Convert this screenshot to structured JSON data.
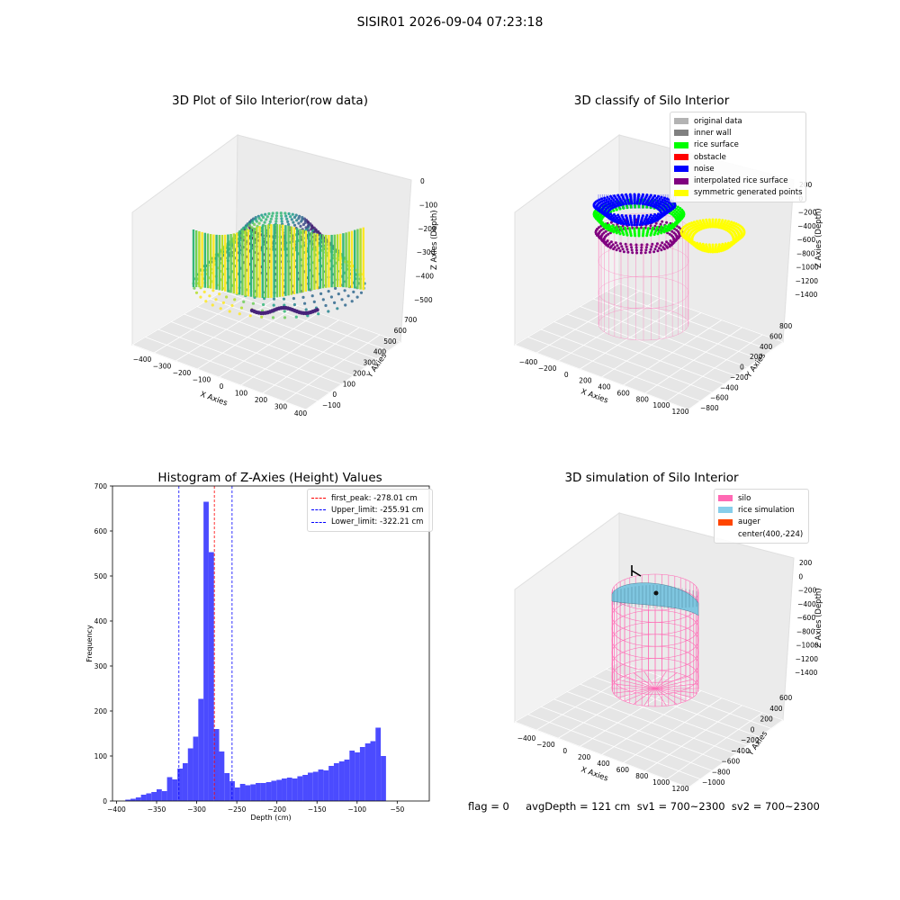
{
  "suptitle": "SISIR01 2026-09-04 07:23:18",
  "panels": {
    "raw": {
      "title": "3D Plot of Silo Interior(row data)",
      "xlabel": "X Axies",
      "ylabel": "Y Axies",
      "zlabel": "Z Axies (Depth)",
      "xticks": [
        "−400",
        "−300",
        "−200",
        "−100",
        "0",
        "100",
        "200",
        "300",
        "400"
      ],
      "yticks": [
        "−100",
        "0",
        "100",
        "200",
        "300",
        "400",
        "500",
        "600",
        "700"
      ],
      "zticks": [
        "0",
        "−100",
        "−200",
        "−300",
        "−400",
        "−500"
      ]
    },
    "classify": {
      "title": "3D classify of Silo Interior",
      "xlabel": "X Axies",
      "ylabel": "Y Axies",
      "zlabel": "Z Axies (Depth)",
      "xticks": [
        "−400",
        "−200",
        "0",
        "200",
        "400",
        "600",
        "800",
        "1000",
        "1200"
      ],
      "yticks": [
        "−800",
        "−600",
        "−400",
        "−200",
        "0",
        "200",
        "400",
        "600",
        "800"
      ],
      "zticks": [
        "200",
        "0",
        "−200",
        "−400",
        "−600",
        "−800",
        "−1000",
        "−1200",
        "−1400"
      ],
      "legend": [
        {
          "label": "original data",
          "color": "#b3b3b3"
        },
        {
          "label": "inner wall",
          "color": "#808080"
        },
        {
          "label": "rice surface",
          "color": "#00ff00"
        },
        {
          "label": "obstacle",
          "color": "#ff0000"
        },
        {
          "label": "noise",
          "color": "#0000ff"
        },
        {
          "label": "interpolated rice surface",
          "color": "#800080"
        },
        {
          "label": "symmetric generated points",
          "color": "#ffff00"
        }
      ]
    },
    "simulation": {
      "title": "3D simulation of Silo Interior",
      "xlabel": "X Axies",
      "ylabel": "Y Axies",
      "zlabel": "Z Axies (Depth)",
      "xticks": [
        "−400",
        "−200",
        "0",
        "200",
        "400",
        "600",
        "800",
        "1000",
        "1200"
      ],
      "yticks": [
        "−1000",
        "−800",
        "−600",
        "−400",
        "−200",
        "0",
        "200",
        "400",
        "600"
      ],
      "zticks": [
        "200",
        "0",
        "−200",
        "−400",
        "−600",
        "−800",
        "−1000",
        "−1200",
        "−1400"
      ],
      "legend": [
        {
          "label": "silo",
          "color": "#ff69b4"
        },
        {
          "label": "rice simulation",
          "color": "#87ceeb"
        },
        {
          "label": "auger",
          "color": "#ff4500"
        },
        {
          "label": "center(400,-224)",
          "color": ""
        }
      ]
    }
  },
  "status": {
    "text": "flag = 0     avgDepth = 121 cm  sv1 = 700~2300  sv2 = 700~2300"
  },
  "chart_data": [
    {
      "type": "scatter",
      "title": "3D Plot of Silo Interior(row data)",
      "xlabel": "X Axies",
      "ylabel": "Y Axies",
      "zlabel": "Z Axies (Depth)",
      "xlim": [
        -400,
        400
      ],
      "ylim": [
        -100,
        700
      ],
      "zlim": [
        -500,
        0
      ],
      "colormap": "viridis"
    },
    {
      "type": "scatter",
      "title": "3D classify of Silo Interior",
      "xlabel": "X Axies",
      "ylabel": "Y Axies",
      "zlabel": "Z Axies (Depth)",
      "xlim": [
        -400,
        1200
      ],
      "ylim": [
        -800,
        800
      ],
      "zlim": [
        -1400,
        200
      ],
      "legend_position": "top-right"
    },
    {
      "type": "bar",
      "title": "Histogram of Z-Axies (Height) Values",
      "xlabel": "Depth (cm)",
      "ylabel": "Frequency",
      "xlim": [
        -405,
        -10
      ],
      "ylim": [
        0,
        700
      ],
      "xticks": [
        -400,
        -350,
        -300,
        -250,
        -200,
        -150,
        -100,
        -50
      ],
      "yticks": [
        0,
        100,
        200,
        300,
        400,
        500,
        600,
        700
      ],
      "bar_color": "#4b4bff",
      "bin_width": 6.5,
      "bins_start": [
        -389,
        -382.5,
        -376,
        -369.5,
        -363,
        -356.5,
        -350,
        -343.5,
        -337,
        -330.5,
        -324,
        -317.5,
        -311,
        -304.5,
        -298,
        -291.5,
        -285,
        -278.5,
        -272,
        -265.5,
        -259,
        -252.5,
        -246,
        -239.5,
        -233,
        -226.5,
        -220,
        -213.5,
        -207,
        -200.5,
        -194,
        -187.5,
        -181,
        -174.5,
        -168,
        -161.5,
        -155,
        -148.5,
        -142,
        -135.5,
        -129,
        -122.5,
        -116,
        -109.5,
        -103,
        -96.5,
        -90,
        -83.5,
        -77,
        -70.5,
        -64,
        -57.5,
        -51,
        -44.5,
        -38,
        -31.5,
        -25
      ],
      "values": [
        3,
        5,
        8,
        14,
        17,
        20,
        26,
        22,
        53,
        48,
        72,
        84,
        117,
        143,
        227,
        665,
        553,
        160,
        110,
        62,
        44,
        30,
        38,
        35,
        37,
        40,
        40,
        42,
        45,
        47,
        50,
        52,
        50,
        55,
        58,
        63,
        65,
        70,
        68,
        78,
        84,
        88,
        92,
        112,
        108,
        120,
        128,
        133,
        163,
        100,
        0,
        0,
        0,
        0,
        0,
        0,
        0
      ],
      "reference_lines": [
        {
          "name": "first_peak",
          "value": -278.01,
          "color": "#ff0000",
          "label": "first_peak: -278.01 cm"
        },
        {
          "name": "Upper_limit",
          "value": -255.91,
          "color": "#0000ff",
          "label": "Upper_limit: -255.91 cm"
        },
        {
          "name": "Lower_limit",
          "value": -322.21,
          "color": "#0000ff",
          "label": "Lower_limit: -322.21 cm"
        }
      ],
      "legend_position": "top-right"
    },
    {
      "type": "scatter",
      "title": "3D simulation of Silo Interior",
      "xlabel": "X Axies",
      "ylabel": "Y Axies",
      "zlabel": "Z Axies (Depth)",
      "xlim": [
        -400,
        1200
      ],
      "ylim": [
        -1000,
        600
      ],
      "zlim": [
        -1400,
        200
      ],
      "legend_position": "top-right"
    }
  ]
}
